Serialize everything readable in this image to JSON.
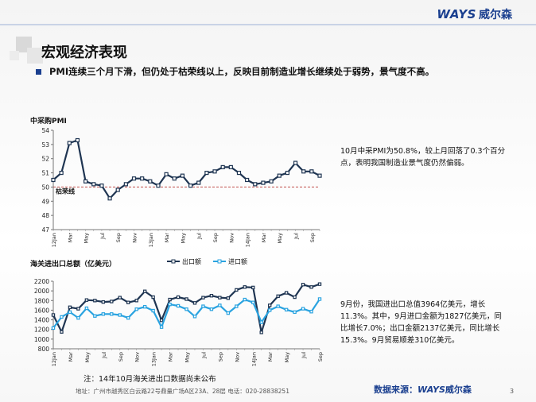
{
  "brand": {
    "logo_text": "WAYS",
    "logo_cn": "威尔森"
  },
  "title": "宏观经济表现",
  "subtitle": "PMI连续三个月下滑，但仍处于枯荣线以上，反映目前制造业增长继续处于弱势，景气度不高。",
  "pmi_description": "10月中采PMI为50.8%，较上月回落了0.3个百分点，表明我国制造业景气度仍然偏弱。",
  "trade_description": "9月份，我国进出口总值3964亿美元，增长11.3%。其中，9月进口金额为1827亿美元，同比增长7.0%；出口金额2137亿美元，同比增长15.3%。9月贸易顺差310亿美元。",
  "note": "注：14年10月海关进出口数据尚未公布",
  "footer": "地址：广州市越秀区白云路22号鼎量广场A区23A、28层    电话：020-28838251",
  "source": {
    "label": "数据来源：",
    "brand": "WAYS",
    "brand_cn": "威尔森"
  },
  "page_number": "3",
  "colors": {
    "brand_blue": "#1a3f8f",
    "export": "#1f3552",
    "import": "#2aa3e0",
    "threshold": "#c0504d"
  },
  "chart_data": [
    {
      "type": "line",
      "title": "中采购PMI",
      "ylim": [
        47,
        54
      ],
      "yticks": [
        47,
        48,
        49,
        50,
        51,
        52,
        53,
        54
      ],
      "threshold": {
        "value": 50,
        "label": "枯荣线"
      },
      "categories": [
        "12Jan",
        "Feb",
        "Mar",
        "Apr",
        "May",
        "Jun",
        "Jul",
        "Aug",
        "Sep",
        "Oct",
        "Nov",
        "Dec",
        "13Jan",
        "Feb",
        "Mar",
        "Apr",
        "May",
        "June",
        "Jul",
        "Aug",
        "Sep",
        "Oct",
        "Nov",
        "Dec",
        "14Jan",
        "Feb",
        "Mar",
        "Apr",
        "May",
        "Jun",
        "Jul",
        "Aug",
        "Sep",
        "Oct"
      ],
      "xtick_labels": [
        "12Jan",
        "Mar",
        "May",
        "Jul",
        "Sep",
        "Nov",
        "13Jan",
        "Mar",
        "May",
        "Jul",
        "Sep",
        "Nov",
        "14Jan",
        "Mar",
        "May",
        "Jul",
        "Sep"
      ],
      "series": [
        {
          "values": [
            50.5,
            51.0,
            53.1,
            53.3,
            50.4,
            50.2,
            50.1,
            49.2,
            49.8,
            50.2,
            50.6,
            50.6,
            50.4,
            50.1,
            50.9,
            50.6,
            50.8,
            50.1,
            50.3,
            51.0,
            51.1,
            51.4,
            51.4,
            51.0,
            50.5,
            50.2,
            50.3,
            50.4,
            50.8,
            51.0,
            51.7,
            51.1,
            51.1,
            50.8
          ]
        }
      ]
    },
    {
      "type": "line",
      "title": "海关进出口总额（亿美元）",
      "ylim": [
        800,
        2200
      ],
      "yticks": [
        800,
        1000,
        1200,
        1400,
        1600,
        1800,
        2000,
        2200
      ],
      "legend_position": "top",
      "categories": [
        "12Jan",
        "Feb",
        "Mar",
        "Apr",
        "May",
        "Jun",
        "Jul",
        "Aug",
        "Sep",
        "Oct",
        "Nov",
        "Dec",
        "13Jan",
        "Feb",
        "Mar",
        "Apr",
        "May",
        "June",
        "Jul",
        "Aug",
        "Sep",
        "Oct",
        "Nov",
        "Dec",
        "14Jan",
        "Feb",
        "Mar",
        "Apr",
        "May",
        "Jun",
        "Jul",
        "Aug",
        "Sep"
      ],
      "xtick_labels": [
        "12Jan",
        "Mar",
        "May",
        "Jul",
        "Sep",
        "Nov",
        "13Jan",
        "Mar",
        "May",
        "Jul",
        "Sep",
        "Nov",
        "14Jan",
        "Mar",
        "May",
        "Jul",
        "Sep"
      ],
      "series": [
        {
          "name": "出口额",
          "values": [
            1500,
            1150,
            1660,
            1630,
            1810,
            1800,
            1770,
            1780,
            1860,
            1760,
            1800,
            1990,
            1870,
            1390,
            1820,
            1870,
            1830,
            1750,
            1860,
            1900,
            1860,
            1850,
            2020,
            2080,
            2070,
            1140,
            1700,
            1890,
            1960,
            1870,
            2130,
            2080,
            2140
          ]
        },
        {
          "name": "进口额",
          "values": [
            1230,
            1460,
            1560,
            1440,
            1640,
            1480,
            1520,
            1520,
            1500,
            1440,
            1620,
            1670,
            1590,
            1250,
            1720,
            1690,
            1620,
            1470,
            1680,
            1620,
            1700,
            1540,
            1680,
            1820,
            1760,
            1350,
            1600,
            1680,
            1610,
            1560,
            1630,
            1570,
            1830
          ]
        }
      ]
    }
  ]
}
